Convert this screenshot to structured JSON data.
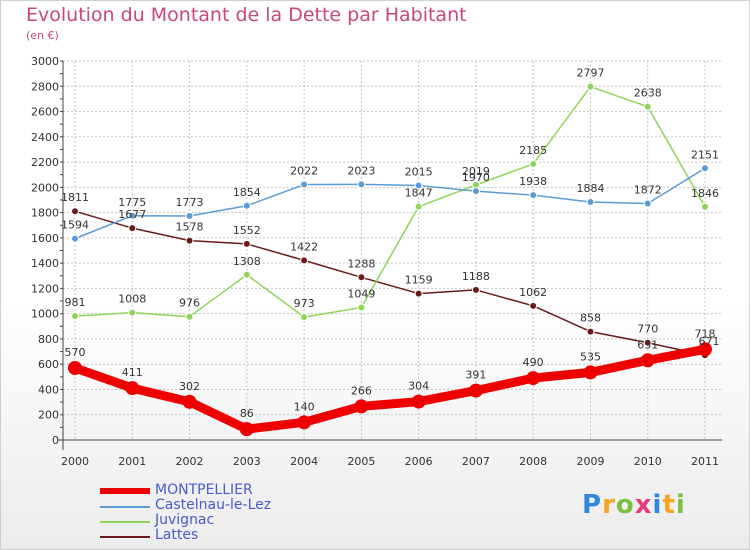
{
  "title": "Evolution du Montant de la Dette par Habitant",
  "subtitle": "(en €)",
  "logo": {
    "text": "Proxiti",
    "colors": [
      "#2e86de",
      "#f5a623",
      "#7ac143",
      "#e63b7a",
      "#2e86de",
      "#f5a623",
      "#7ac143"
    ]
  },
  "chart_data": {
    "type": "line",
    "x": [
      "2000",
      "2001",
      "2002",
      "2003",
      "2004",
      "2005",
      "2006",
      "2007",
      "2008",
      "2009",
      "2010",
      "2011"
    ],
    "ylim": [
      0,
      3000
    ],
    "yticks": [
      "0",
      "200",
      "400",
      "600",
      "800",
      "1000",
      "1200",
      "1400",
      "1600",
      "1800",
      "2000",
      "2200",
      "2400",
      "2600",
      "2800",
      "3000"
    ],
    "grid": true,
    "legend_position": "bottom-left",
    "series": [
      {
        "name": "MONTPELLIER",
        "color": "#ee0000",
        "values": [
          570,
          411,
          302,
          86,
          140,
          266,
          304,
          391,
          490,
          535,
          631,
          718
        ]
      },
      {
        "name": "Castelnau-le-Lez",
        "color": "#5a9bd5",
        "values": [
          1594,
          1775,
          1773,
          1854,
          2022,
          2023,
          2015,
          1970,
          1938,
          1884,
          1872,
          2151
        ]
      },
      {
        "name": "Juvignac",
        "color": "#8fd45a",
        "values": [
          981,
          1008,
          976,
          1308,
          973,
          1049,
          1847,
          2019,
          2185,
          2797,
          2638,
          1846
        ]
      },
      {
        "name": "Lattes",
        "color": "#6b1a1a",
        "values": [
          1811,
          1677,
          1578,
          1552,
          1422,
          1288,
          1159,
          1188,
          1062,
          858,
          770,
          671
        ]
      }
    ]
  }
}
